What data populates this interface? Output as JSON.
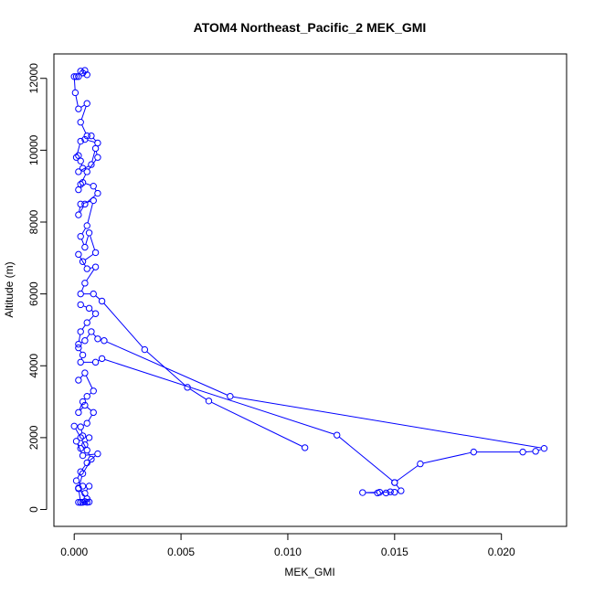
{
  "chart_data": {
    "type": "line",
    "title": "ATOM4 Northeast_Pacific_2 MEK_GMI",
    "xlabel": "MEK_GMI",
    "ylabel": "Altitude (m)",
    "xlim": [
      -0.00095,
      0.02305
    ],
    "ylim": [
      -470,
      12680
    ],
    "xticks": [
      0.0,
      0.005,
      0.01,
      0.015,
      0.02
    ],
    "xtick_labels": [
      "0.000",
      "0.005",
      "0.010",
      "0.015",
      "0.020"
    ],
    "yticks": [
      0,
      2000,
      4000,
      6000,
      8000,
      10000,
      12000
    ],
    "ytick_labels": [
      "0",
      "2000",
      "4000",
      "6000",
      "8000",
      "10000",
      "12000"
    ],
    "grid": false,
    "marker": "open-circle",
    "color": "#0000ff",
    "series": [
      {
        "values": [
          [
            0.0004,
            12150
          ],
          [
            0.0003,
            12200
          ],
          [
            0.0005,
            12220
          ],
          [
            0.0006,
            12100
          ],
          [
            0.0002,
            12050
          ],
          [
            0.0001,
            12050
          ],
          [
            0.0,
            12050
          ],
          [
            5e-05,
            11600
          ],
          [
            0.0002,
            11150
          ],
          [
            0.0006,
            11300
          ],
          [
            0.0003,
            10780
          ],
          [
            0.0006,
            10400
          ],
          [
            0.0008,
            10400
          ],
          [
            0.0011,
            10200
          ],
          [
            0.0005,
            10300
          ],
          [
            0.0003,
            10250
          ],
          [
            0.0001,
            9800
          ],
          [
            0.0002,
            9850
          ],
          [
            0.0003,
            9700
          ],
          [
            0.0004,
            9500
          ],
          [
            0.0002,
            9400
          ],
          [
            0.0008,
            9600
          ],
          [
            0.001,
            10050
          ],
          [
            0.0011,
            9800
          ],
          [
            0.0006,
            9400
          ],
          [
            0.0003,
            9050
          ],
          [
            0.0002,
            8900
          ],
          [
            0.0004,
            9100
          ],
          [
            0.0009,
            9000
          ],
          [
            0.0011,
            8800
          ],
          [
            0.0005,
            8500
          ],
          [
            0.0002,
            8200
          ],
          [
            0.0003,
            8500
          ],
          [
            0.0009,
            8600
          ],
          [
            0.0006,
            7900
          ],
          [
            0.0003,
            7600
          ],
          [
            0.0005,
            7300
          ],
          [
            0.0007,
            7700
          ],
          [
            0.001,
            7150
          ],
          [
            0.0004,
            6900
          ],
          [
            0.0002,
            7100
          ],
          [
            0.0006,
            6700
          ],
          [
            0.001,
            6750
          ],
          [
            0.0005,
            6300
          ],
          [
            0.0003,
            6000
          ],
          [
            0.0009,
            6000
          ],
          [
            0.0013,
            5800
          ],
          [
            0.0033,
            4450
          ],
          [
            0.0053,
            3400
          ],
          [
            0.0063,
            3020
          ],
          [
            0.0108,
            1720
          ]
        ]
      },
      {
        "values": [
          [
            0.0003,
            5700
          ],
          [
            0.0007,
            5600
          ],
          [
            0.001,
            5450
          ],
          [
            0.0006,
            5200
          ],
          [
            0.0003,
            4950
          ],
          [
            0.0002,
            4600
          ],
          [
            0.0005,
            4700
          ],
          [
            0.0008,
            4950
          ],
          [
            0.0011,
            4750
          ],
          [
            0.0014,
            4700
          ],
          [
            0.0073,
            3150
          ],
          [
            0.022,
            1700
          ],
          [
            0.0216,
            1620
          ],
          [
            0.021,
            1600
          ],
          [
            0.0187,
            1600
          ],
          [
            0.0162,
            1270
          ],
          [
            0.015,
            750
          ],
          [
            0.0153,
            520
          ],
          [
            0.015,
            480
          ],
          [
            0.0146,
            460
          ],
          [
            0.0142,
            460
          ],
          [
            0.0135,
            470
          ],
          [
            0.0143,
            480
          ],
          [
            0.0148,
            490
          ]
        ]
      },
      {
        "values": [
          [
            0.0002,
            4500
          ],
          [
            0.0004,
            4300
          ],
          [
            0.0003,
            4100
          ],
          [
            0.001,
            4100
          ],
          [
            0.0013,
            4200
          ],
          [
            0.0123,
            2070
          ],
          [
            0.015,
            750
          ]
        ]
      },
      {
        "values": [
          [
            0.0002,
            3600
          ],
          [
            0.0005,
            3800
          ],
          [
            0.0009,
            3300
          ],
          [
            0.0006,
            3150
          ],
          [
            0.0004,
            3000
          ],
          [
            0.0002,
            2700
          ],
          [
            0.0005,
            2900
          ],
          [
            0.0009,
            2700
          ],
          [
            0.0006,
            2400
          ],
          [
            0.0003,
            2300
          ],
          [
            0.0004,
            2050
          ],
          [
            0.0007,
            2000
          ],
          [
            0.0005,
            1800
          ],
          [
            0.0003,
            1700
          ],
          [
            0.0001,
            1900
          ],
          [
            0.0004,
            1500
          ],
          [
            0.0011,
            1550
          ],
          [
            0.0006,
            1300
          ],
          [
            0.0003,
            1050
          ],
          [
            0.0001,
            800
          ],
          [
            0.0004,
            650
          ],
          [
            0.0007,
            650
          ],
          [
            0.0005,
            450
          ],
          [
            0.0002,
            600
          ],
          [
            0.0003,
            200
          ],
          [
            0.0005,
            220
          ],
          [
            0.0007,
            210
          ],
          [
            0.0003,
            200
          ],
          [
            0.0002,
            200
          ],
          [
            0.0006,
            200
          ]
        ]
      },
      {
        "values": [
          [
            0.0,
            2320
          ],
          [
            0.0003,
            2000
          ],
          [
            0.0006,
            1650
          ],
          [
            0.0008,
            1400
          ],
          [
            0.0004,
            1000
          ],
          [
            0.0002,
            580
          ],
          [
            0.0006,
            300
          ],
          [
            0.0004,
            200
          ]
        ]
      }
    ]
  }
}
